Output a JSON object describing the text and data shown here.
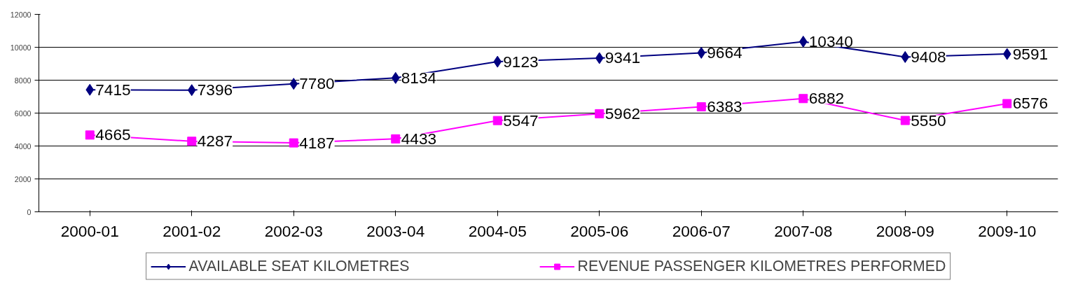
{
  "chart_data": {
    "type": "line",
    "categories": [
      "2000-01",
      "2001-02",
      "2002-03",
      "2003-04",
      "2004-05",
      "2005-06",
      "2006-07",
      "2007-08",
      "2008-09",
      "2009-10"
    ],
    "series": [
      {
        "name": "AVAILABLE SEAT KILOMETRES",
        "color": "#000080",
        "marker": "diamond",
        "values": [
          7415,
          7396,
          7780,
          8134,
          9123,
          9341,
          9664,
          10340,
          9408,
          9591
        ]
      },
      {
        "name": "REVENUE PASSENGER KILOMETRES PERFORMED",
        "color": "#ff00ff",
        "marker": "square",
        "values": [
          4665,
          4287,
          4187,
          4433,
          5547,
          5962,
          6383,
          6882,
          5550,
          6576
        ]
      }
    ],
    "ylim": [
      0,
      12000
    ],
    "yticks": [
      0,
      2000,
      4000,
      6000,
      8000,
      10000,
      12000
    ],
    "grid": "y",
    "legend": "bottom",
    "data_labels": true,
    "line_style": "solid"
  }
}
